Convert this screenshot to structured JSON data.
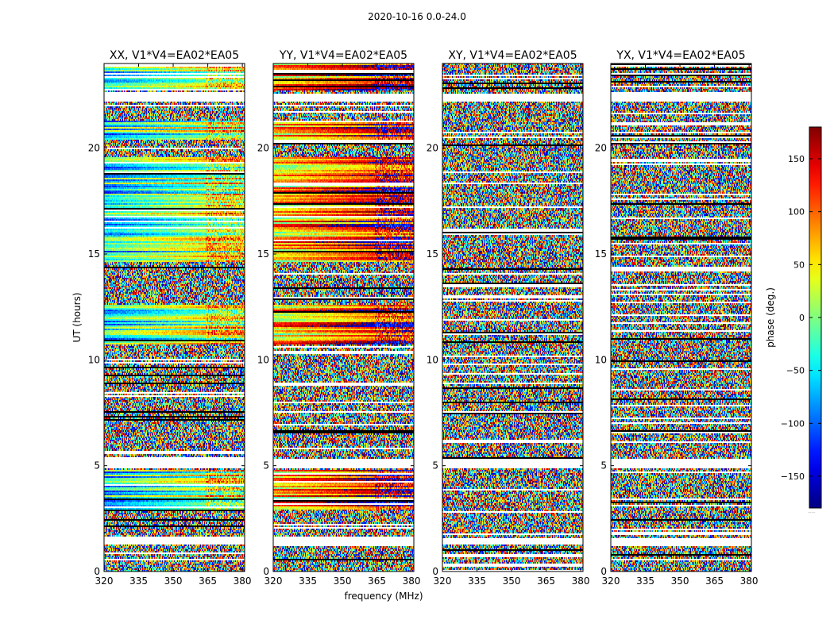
{
  "figure": {
    "suptitle": "2020-10-16 0.0-24.0",
    "xlabel": "frequency (MHz)",
    "ylabel": "UT (hours)"
  },
  "chart_data": {
    "type": "heatmap",
    "title": "2020-10-16 0.0-24.0",
    "xlabel": "frequency (MHz)",
    "ylabel": "UT (hours)",
    "xlim": [
      320,
      381
    ],
    "ylim": [
      0,
      24
    ],
    "xticks": [
      320,
      335,
      350,
      365,
      380
    ],
    "yticks": [
      0,
      5,
      10,
      15,
      20
    ],
    "panels": [
      {
        "title": "XX, V1*V4=EA02*EA05",
        "kind": "parallel",
        "offset": -50
      },
      {
        "title": "YY, V1*V4=EA02*EA05",
        "kind": "parallel",
        "offset": 60
      },
      {
        "title": "XY, V1*V4=EA02*EA05",
        "kind": "cross",
        "offset": 0
      },
      {
        "title": "YX, V1*V4=EA02*EA05",
        "kind": "cross",
        "offset": 0
      }
    ],
    "colorbar": {
      "label": "phase (deg.)",
      "colormap": "jet",
      "range": [
        -180,
        180
      ],
      "ticks": [
        -150,
        -100,
        -50,
        0,
        50,
        100,
        150
      ],
      "tick_labels": [
        "−150",
        "−100",
        "−50",
        "0",
        "50",
        "100",
        "150"
      ],
      "footnote": "......"
    },
    "blank_ut_bands": [
      [
        1.25,
        1.55
      ],
      [
        4.9,
        5.3
      ],
      [
        22.2,
        22.55
      ]
    ],
    "coherent_ut_bands": [
      [
        2.95,
        4.8
      ],
      [
        10.7,
        12.6
      ],
      [
        14.6,
        19.6
      ],
      [
        20.4,
        21.3
      ],
      [
        22.7,
        24.0
      ]
    ]
  }
}
